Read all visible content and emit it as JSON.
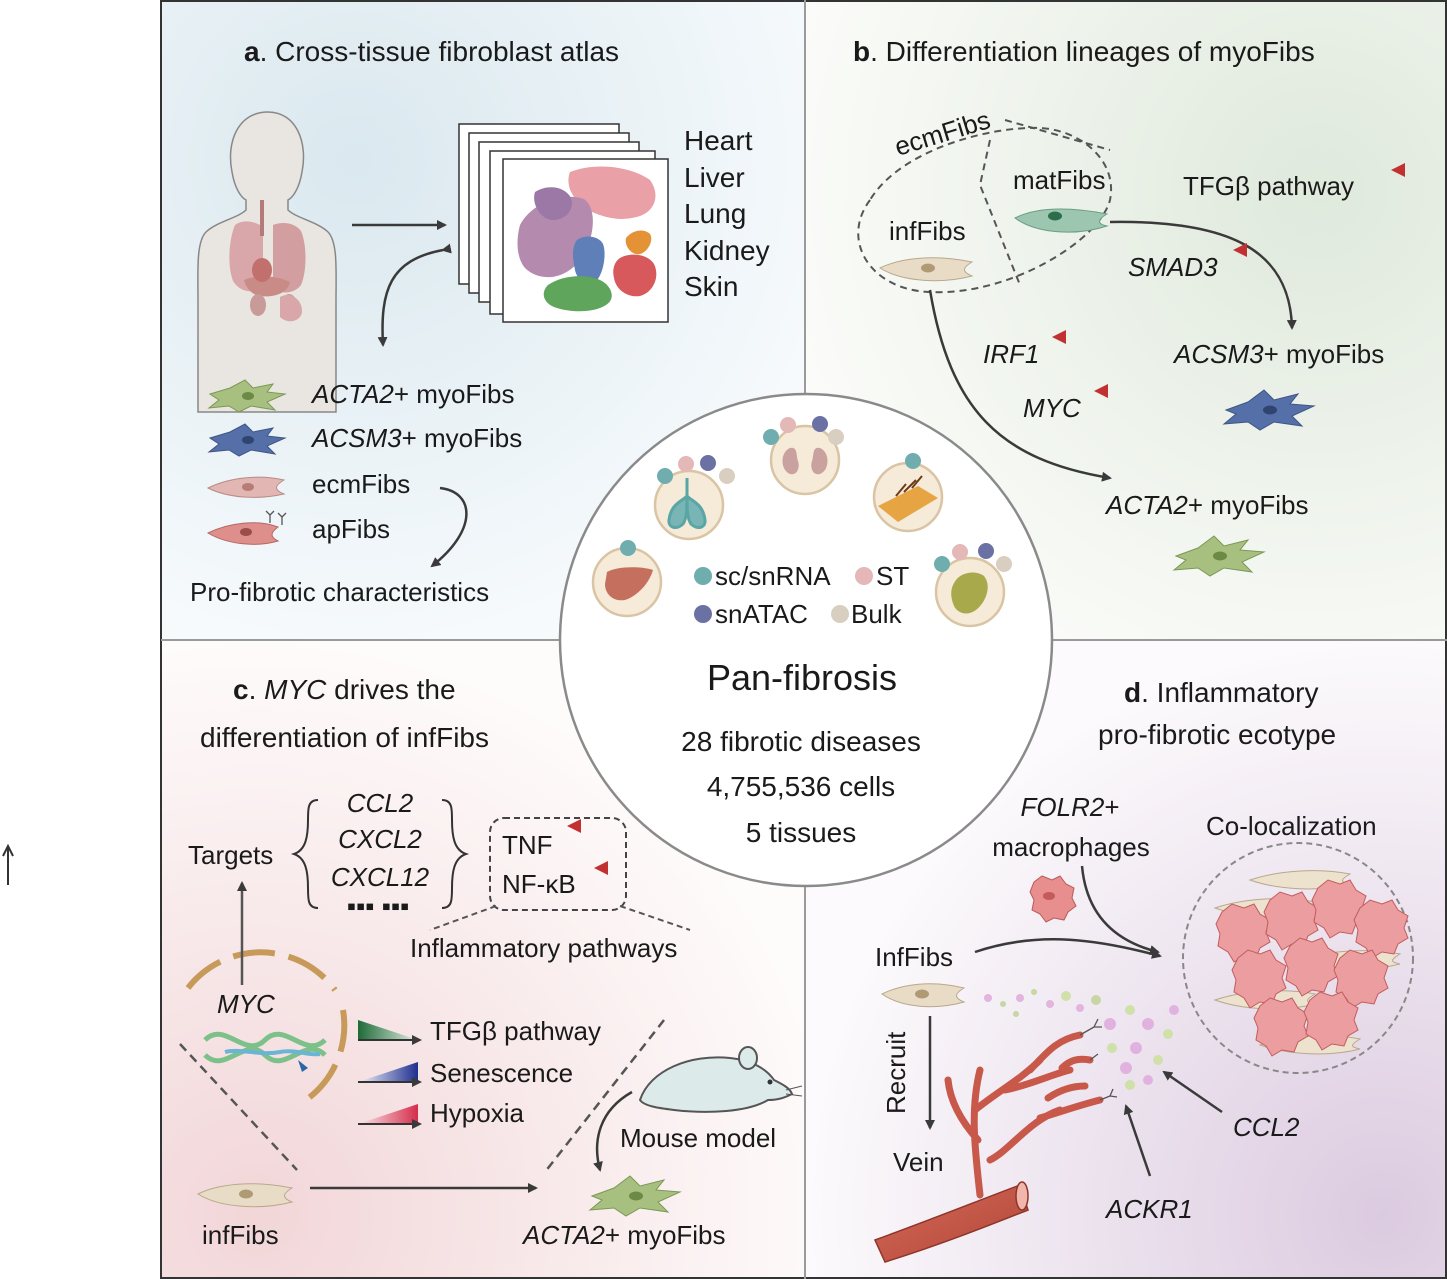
{
  "panel_a": {
    "letter": "a",
    "title": ". Cross-tissue fibroblast atlas",
    "tissues": [
      "Heart",
      "Liver",
      "Lung",
      "Kidney",
      "Skin"
    ],
    "cell_types": [
      {
        "italic": "ACTA2",
        "rest": "+ myoFibs",
        "color": "#a7c07f"
      },
      {
        "italic": "ACSM3",
        "rest": "+ myoFibs",
        "color": "#5570a8"
      },
      {
        "italic": "",
        "rest": "ecmFibs",
        "color": "#e2b7b3"
      },
      {
        "italic": "",
        "rest": "apFibs",
        "color": "#de8f8c"
      }
    ],
    "footer": "Pro-fibrotic characteristics"
  },
  "panel_b": {
    "letter": "b",
    "title": ". Differentiation lineages of myoFibs",
    "ecm": "ecmFibs",
    "mat": "matFibs",
    "inf": "infFibs",
    "tgfb": "TFGβ pathway",
    "smad3": "SMAD3",
    "irf1": "IRF1",
    "myc": "MYC",
    "acsm3_italic": "ACSM3",
    "acsm3_rest": "+ myoFibs",
    "acta2_italic": "ACTA2",
    "acta2_rest": "+ myoFibs"
  },
  "center": {
    "legend": [
      {
        "label": "sc/snRNA",
        "color": "#6fadae"
      },
      {
        "label": "ST",
        "color": "#e3b8b6"
      },
      {
        "label": "snATAC",
        "color": "#6b71a3"
      },
      {
        "label": "Bulk",
        "color": "#d8cfc0"
      }
    ],
    "title": "Pan-fibrosis",
    "stats": [
      "28 fibrotic diseases",
      "4,755,536 cells",
      "5 tissues"
    ]
  },
  "panel_c": {
    "letter": "c",
    "title_italic": "MYC",
    "title_rest": " drives the",
    "title_line2": "differentiation of infFibs",
    "targets_label": "Targets",
    "targets": [
      "CCL2",
      "CXCL2",
      "CXCL12"
    ],
    "ellipsis": "▪▪▪  ▪▪▪",
    "pathways": [
      "TNF",
      "NF-κB"
    ],
    "inflammatory_label": "Inflammatory pathways",
    "myc_gene": "MYC",
    "processes": [
      "TFGβ pathway",
      "Senescence",
      "Hypoxia"
    ],
    "mouse_model": "Mouse model",
    "start": "infFibs",
    "end_italic": "ACTA2",
    "end_rest": "+ myoFibs"
  },
  "panel_d": {
    "letter": "d",
    "title_rest": ". Inflammatory",
    "title_line2": "pro-fibrotic ecotype",
    "folr2_italic": "FOLR2",
    "folr2_rest": "+",
    "macrophages": "macrophages",
    "colocalization": "Co-localization",
    "inffibs": "InfFibs",
    "recruit": "Recruit",
    "vein": "Vein",
    "ccl2": "CCL2",
    "ackr1": "ACKR1"
  },
  "colors": {
    "panel_a_bg": "#e4eef3",
    "panel_b_bg": "#e8efe6",
    "panel_c_bg": "#f6e3e4",
    "panel_d_bg": "#e8dde9",
    "red_arrow": "#c23131",
    "vein": "#c8584a"
  }
}
